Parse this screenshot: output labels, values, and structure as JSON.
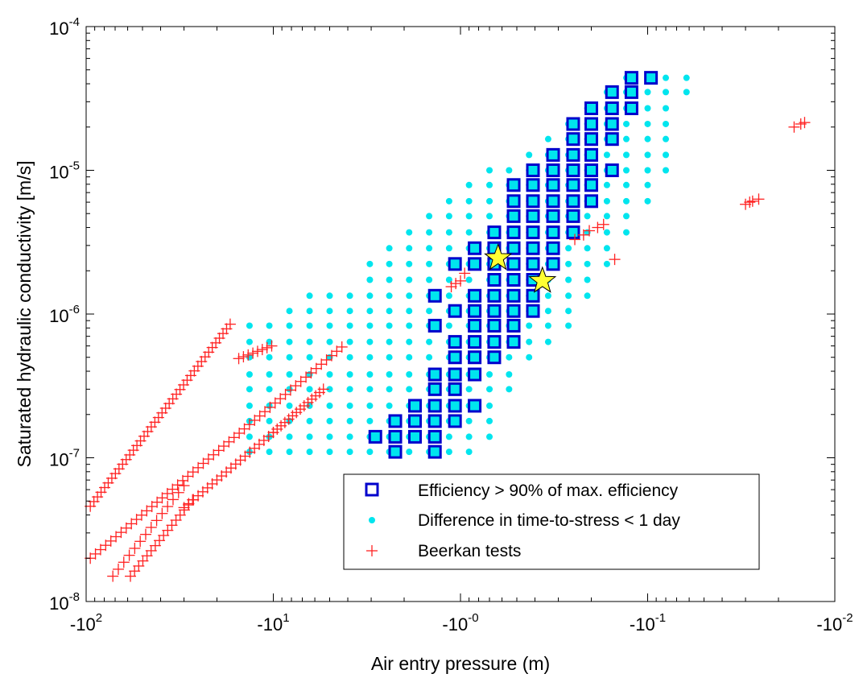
{
  "colors": {
    "efficient_square": "#0000cc",
    "time_to_stress_dot": "#00e5ee",
    "beerkan_marker": "#ff2222",
    "star_fill": "#ffff33",
    "star_stroke": "#000000"
  },
  "chart_data": {
    "type": "scatter",
    "xlabel": "Air entry pressure (m)",
    "ylabel": "Saturated hydraulic conductivity [m/s]",
    "xscale": "log of negative values (magnitude decreasing left to right)",
    "yscale": "log",
    "xlim": [
      -100,
      -0.01
    ],
    "ylim": [
      1e-08,
      0.0001
    ],
    "grid": false,
    "legend_position": "bottom-right",
    "x_ticks": [
      {
        "base": "-10",
        "exp": "2"
      },
      {
        "base": "-10",
        "exp": "1"
      },
      {
        "base": "-10",
        "exp": "-0"
      },
      {
        "base": "-10",
        "exp": "-1"
      },
      {
        "base": "-10",
        "exp": "-2"
      }
    ],
    "y_ticks": [
      {
        "base": "10",
        "exp": "-8"
      },
      {
        "base": "10",
        "exp": "-7"
      },
      {
        "base": "10",
        "exp": "-6"
      },
      {
        "base": "10",
        "exp": "-5"
      },
      {
        "base": "10",
        "exp": "-4"
      }
    ],
    "series": [
      {
        "name": "Efficiency > 90% of max. efficiency",
        "marker": "square",
        "color": "#0000cc",
        "columns": [
          {
            "x": -2.85,
            "y": [
              1.4e-07
            ]
          },
          {
            "x": -2.23,
            "y": [
              1.1e-07,
              1.4e-07,
              1.8e-07
            ]
          },
          {
            "x": -1.75,
            "y": [
              1.4e-07,
              1.8e-07,
              2.3e-07
            ]
          },
          {
            "x": -1.37,
            "y": [
              1.1e-07,
              1.4e-07,
              1.8e-07,
              2.3e-07,
              3e-07,
              3.8e-07,
              8.3e-07,
              1.34e-06
            ]
          },
          {
            "x": -1.07,
            "y": [
              1.8e-07,
              2.3e-07,
              3e-07,
              3.8e-07,
              5e-07,
              6.4e-07,
              1.05e-06,
              2.23e-06
            ]
          },
          {
            "x": -0.84,
            "y": [
              2.3e-07,
              3.8e-07,
              5e-07,
              6.4e-07,
              8.3e-07,
              1.05e-06,
              1.34e-06,
              2.23e-06,
              2.87e-06
            ]
          },
          {
            "x": -0.66,
            "y": [
              5e-07,
              6.4e-07,
              8.3e-07,
              1.05e-06,
              1.34e-06,
              1.73e-06,
              2.23e-06,
              2.87e-06,
              3.7e-06
            ]
          },
          {
            "x": -0.52,
            "y": [
              6.4e-07,
              8.3e-07,
              1.05e-06,
              1.34e-06,
              1.73e-06,
              2.23e-06,
              2.87e-06,
              3.7e-06,
              4.8e-06,
              6.1e-06,
              7.9e-06
            ]
          },
          {
            "x": -0.41,
            "y": [
              1.05e-06,
              1.34e-06,
              1.73e-06,
              2.23e-06,
              2.87e-06,
              3.7e-06,
              4.8e-06,
              6.1e-06,
              7.9e-06,
              1e-05
            ]
          },
          {
            "x": -0.32,
            "y": [
              2.23e-06,
              2.87e-06,
              3.7e-06,
              4.8e-06,
              6.1e-06,
              7.9e-06,
              1e-05,
              1.28e-05
            ]
          },
          {
            "x": -0.25,
            "y": [
              3.7e-06,
              4.8e-06,
              6.1e-06,
              7.9e-06,
              1e-05,
              1.28e-05,
              1.65e-05,
              2.1e-05
            ]
          },
          {
            "x": -0.2,
            "y": [
              6.1e-06,
              7.9e-06,
              1e-05,
              1.28e-05,
              1.65e-05,
              2.1e-05,
              2.7e-05
            ]
          },
          {
            "x": -0.155,
            "y": [
              1e-05,
              1.65e-05,
              2.1e-05,
              2.7e-05,
              3.5e-05
            ]
          },
          {
            "x": -0.122,
            "y": [
              2.7e-05,
              3.5e-05,
              4.4e-05
            ]
          },
          {
            "x": -0.096,
            "y": [
              4.4e-05
            ]
          }
        ]
      },
      {
        "name": "Difference in time-to-stress < 1 day",
        "marker": "dot",
        "color": "#00e5ee",
        "columns": [
          {
            "x": -13.4,
            "y": [
              1.1e-07,
              1.4e-07,
              1.8e-07,
              2.3e-07,
              3e-07,
              3.8e-07,
              5e-07,
              6.4e-07,
              8.3e-07
            ]
          },
          {
            "x": -10.5,
            "y": [
              1.1e-07,
              1.4e-07,
              1.8e-07,
              2.3e-07,
              3e-07,
              3.8e-07,
              5e-07,
              6.4e-07,
              8.3e-07
            ]
          },
          {
            "x": -8.2,
            "y": [
              1.1e-07,
              1.4e-07,
              1.8e-07,
              2.3e-07,
              3e-07,
              3.8e-07,
              5e-07,
              6.4e-07,
              8.3e-07,
              1.05e-06
            ]
          },
          {
            "x": -6.4,
            "y": [
              1.1e-07,
              1.4e-07,
              1.8e-07,
              2.3e-07,
              3e-07,
              3.8e-07,
              5e-07,
              6.4e-07,
              8.3e-07,
              1.05e-06,
              1.34e-06
            ]
          },
          {
            "x": -5.0,
            "y": [
              1.1e-07,
              1.4e-07,
              1.8e-07,
              2.3e-07,
              3e-07,
              3.8e-07,
              5e-07,
              6.4e-07,
              8.3e-07,
              1.05e-06,
              1.34e-06
            ]
          },
          {
            "x": -3.9,
            "y": [
              1.1e-07,
              1.4e-07,
              1.8e-07,
              2.3e-07,
              3e-07,
              3.8e-07,
              5e-07,
              6.4e-07,
              8.3e-07,
              1.05e-06,
              1.34e-06
            ]
          },
          {
            "x": -3.05,
            "y": [
              1.1e-07,
              1.4e-07,
              1.8e-07,
              2.3e-07,
              3e-07,
              3.8e-07,
              5e-07,
              6.4e-07,
              8.3e-07,
              1.05e-06,
              1.34e-06,
              1.73e-06,
              2.23e-06
            ]
          },
          {
            "x": -2.4,
            "y": [
              1.1e-07,
              1.4e-07,
              1.8e-07,
              2.3e-07,
              3e-07,
              3.8e-07,
              5e-07,
              6.4e-07,
              8.3e-07,
              1.05e-06,
              1.34e-06,
              1.73e-06,
              2.23e-06,
              2.87e-06
            ]
          },
          {
            "x": -1.88,
            "y": [
              1.1e-07,
              1.4e-07,
              1.8e-07,
              2.3e-07,
              3e-07,
              3.8e-07,
              5e-07,
              6.4e-07,
              8.3e-07,
              1.05e-06,
              1.34e-06,
              1.73e-06,
              2.23e-06,
              2.87e-06,
              3.7e-06
            ]
          },
          {
            "x": -1.47,
            "y": [
              1.1e-07,
              1.4e-07,
              1.8e-07,
              2.3e-07,
              3e-07,
              3.8e-07,
              5e-07,
              6.4e-07,
              8.3e-07,
              1.05e-06,
              1.34e-06,
              1.73e-06,
              2.23e-06,
              2.87e-06,
              3.7e-06,
              4.8e-06
            ]
          },
          {
            "x": -1.15,
            "y": [
              1.1e-07,
              1.4e-07,
              1.8e-07,
              2.3e-07,
              3e-07,
              3.8e-07,
              5e-07,
              6.4e-07,
              8.3e-07,
              1.05e-06,
              1.34e-06,
              1.73e-06,
              2.23e-06,
              2.87e-06,
              3.7e-06,
              4.8e-06,
              6.1e-06
            ]
          },
          {
            "x": -0.9,
            "y": [
              1.1e-07,
              1.4e-07,
              1.8e-07,
              2.3e-07,
              3e-07,
              3.8e-07,
              5e-07,
              6.4e-07,
              8.3e-07,
              1.05e-06,
              1.34e-06,
              1.73e-06,
              2.23e-06,
              2.87e-06,
              3.7e-06,
              4.8e-06,
              6.1e-06,
              7.9e-06
            ]
          },
          {
            "x": -0.7,
            "y": [
              1.4e-07,
              1.8e-07,
              2.3e-07,
              3e-07,
              3.8e-07,
              5e-07,
              6.4e-07,
              8.3e-07,
              1.05e-06,
              1.34e-06,
              1.73e-06,
              2.23e-06,
              2.87e-06,
              3.7e-06,
              4.8e-06,
              6.1e-06,
              7.9e-06,
              1e-05
            ]
          },
          {
            "x": -0.55,
            "y": [
              3e-07,
              3.8e-07,
              5e-07,
              6.4e-07,
              8.3e-07,
              1.05e-06,
              1.34e-06,
              1.73e-06,
              2.23e-06,
              2.87e-06,
              3.7e-06,
              4.8e-06,
              6.1e-06,
              7.9e-06,
              1e-05
            ]
          },
          {
            "x": -0.43,
            "y": [
              5e-07,
              6.4e-07,
              8.3e-07,
              1.05e-06,
              1.34e-06,
              1.73e-06,
              2.23e-06,
              2.87e-06,
              3.7e-06,
              4.8e-06,
              6.1e-06,
              7.9e-06,
              1e-05,
              1.28e-05
            ]
          },
          {
            "x": -0.34,
            "y": [
              6.4e-07,
              8.3e-07,
              1.05e-06,
              1.34e-06,
              1.73e-06,
              2.23e-06,
              2.87e-06,
              3.7e-06,
              4.8e-06,
              6.1e-06,
              7.9e-06,
              1e-05,
              1.28e-05,
              1.65e-05
            ]
          },
          {
            "x": -0.265,
            "y": [
              8.3e-07,
              1.05e-06,
              1.34e-06,
              1.73e-06,
              2.23e-06,
              2.87e-06,
              3.7e-06,
              4.8e-06,
              6.1e-06,
              7.9e-06,
              1e-05,
              1.28e-05,
              1.65e-05,
              2.1e-05
            ]
          },
          {
            "x": -0.21,
            "y": [
              1.34e-06,
              1.73e-06,
              2.23e-06,
              2.87e-06,
              3.7e-06,
              4.8e-06,
              6.1e-06,
              7.9e-06,
              1e-05,
              1.28e-05,
              1.65e-05,
              2.1e-05,
              2.7e-05
            ]
          },
          {
            "x": -0.165,
            "y": [
              2.23e-06,
              2.87e-06,
              3.7e-06,
              4.8e-06,
              6.1e-06,
              7.9e-06,
              1e-05,
              1.28e-05,
              1.65e-05,
              2.1e-05,
              2.7e-05,
              3.5e-05
            ]
          },
          {
            "x": -0.13,
            "y": [
              3.7e-06,
              4.8e-06,
              6.1e-06,
              7.9e-06,
              1e-05,
              1.28e-05,
              1.65e-05,
              2.1e-05,
              2.7e-05,
              3.5e-05,
              4.4e-05
            ]
          },
          {
            "x": -0.1,
            "y": [
              6.1e-06,
              7.9e-06,
              1e-05,
              1.28e-05,
              1.65e-05,
              2.1e-05,
              2.7e-05,
              3.5e-05,
              4.4e-05
            ]
          },
          {
            "x": -0.08,
            "y": [
              1e-05,
              1.28e-05,
              1.65e-05,
              2.1e-05,
              2.7e-05,
              3.5e-05,
              4.4e-05
            ]
          },
          {
            "x": -0.062,
            "y": [
              3.5e-05,
              4.4e-05
            ]
          }
        ]
      },
      {
        "name": "Beerkan tests",
        "marker": "plus",
        "color": "#ff2222",
        "segments": [
          {
            "x0": -95,
            "y0": 4.6e-08,
            "x1": -17,
            "y1": 8.5e-07,
            "n": 40
          },
          {
            "x0": -95,
            "y0": 2e-08,
            "x1": -4.3,
            "y1": 5.9e-07,
            "n": 50
          },
          {
            "x0": -72,
            "y0": 1.5e-08,
            "x1": -30,
            "y1": 6.4e-08,
            "n": 14
          },
          {
            "x0": -30,
            "y0": 4.5e-08,
            "x1": -10,
            "y1": 1.5e-07,
            "n": 20
          },
          {
            "x0": -10,
            "y0": 1.5e-07,
            "x1": -5.4,
            "y1": 3e-07,
            "n": 14
          },
          {
            "x0": -58,
            "y0": 1.5e-08,
            "x1": -27,
            "y1": 5.1e-08,
            "n": 16
          },
          {
            "x0": -15.3,
            "y0": 4.9e-07,
            "x1": -10.2,
            "y1": 6e-07,
            "n": 8
          }
        ],
        "points": [
          {
            "x": -1.12,
            "y": 1.55e-06
          },
          {
            "x": -1.06,
            "y": 1.63e-06
          },
          {
            "x": -1.0,
            "y": 1.7e-06
          },
          {
            "x": -0.95,
            "y": 1.92e-06
          },
          {
            "x": -0.245,
            "y": 3.3e-06
          },
          {
            "x": -0.22,
            "y": 3.55e-06
          },
          {
            "x": -0.205,
            "y": 3.8e-06
          },
          {
            "x": -0.185,
            "y": 4e-06
          },
          {
            "x": -0.172,
            "y": 4.2e-06
          },
          {
            "x": -0.15,
            "y": 2.4e-06
          },
          {
            "x": -0.03,
            "y": 5.8e-06
          },
          {
            "x": -0.0285,
            "y": 6e-06
          },
          {
            "x": -0.0275,
            "y": 6.1e-06
          },
          {
            "x": -0.0255,
            "y": 6.3e-06
          },
          {
            "x": -0.0165,
            "y": 2e-05
          },
          {
            "x": -0.0152,
            "y": 2.1e-05
          },
          {
            "x": -0.0145,
            "y": 2.15e-05
          }
        ]
      },
      {
        "marker": "star",
        "color": "#ffff33",
        "points": [
          {
            "x": -0.63,
            "y": 2.45e-06
          },
          {
            "x": -0.365,
            "y": 1.7e-06
          }
        ]
      }
    ],
    "legend": [
      "Efficiency > 90% of max. efficiency",
      "Difference in time-to-stress < 1 day",
      "Beerkan tests"
    ]
  }
}
